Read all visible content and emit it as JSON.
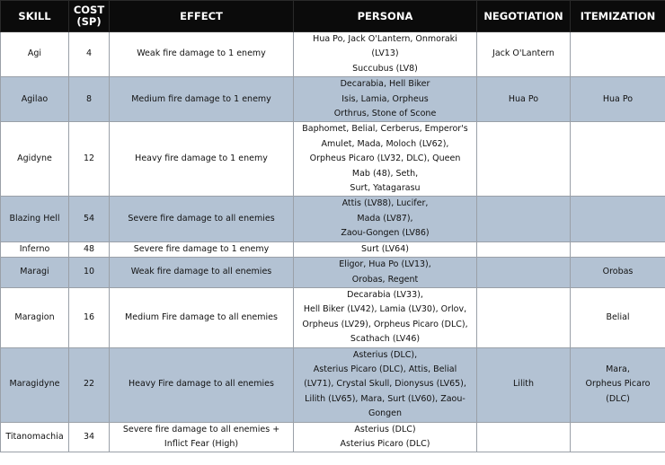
{
  "headers": {
    "skill": "SKILL",
    "cost_line1": "COST",
    "cost_line2": "(SP)",
    "effect": "EFFECT",
    "persona": "PERSONA",
    "negotiation": "NEGOTIATION",
    "itemization": "ITEMIZATION"
  },
  "rows": [
    {
      "skill": "Agi",
      "cost": "4",
      "effect": [
        "Weak fire damage to 1 enemy"
      ],
      "persona": [
        "Hua Po, Jack O'Lantern, Onmoraki",
        "(LV13)",
        "Succubus (LV8)"
      ],
      "negotiation": [
        "Jack O'Lantern"
      ],
      "itemization": [],
      "shade": "white"
    },
    {
      "skill": "Agilao",
      "cost": "8",
      "effect": [
        "Medium fire damage to 1 enemy"
      ],
      "persona": [
        "Decarabia, Hell Biker",
        "Isis, Lamia, Orpheus",
        "Orthrus, Stone of Scone"
      ],
      "negotiation": [
        "Hua Po"
      ],
      "itemization": [
        "Hua Po"
      ],
      "shade": "blue"
    },
    {
      "skill": "Agidyne",
      "cost": "12",
      "effect": [
        "Heavy fire damage to 1 enemy"
      ],
      "persona": [
        "Baphomet, Belial, Cerberus, Emperor's",
        "Amulet, Mada, Moloch (LV62),",
        "Orpheus Picaro (LV32, DLC), Queen",
        "Mab (48), Seth,",
        "Surt, Yatagarasu"
      ],
      "negotiation": [],
      "itemization": [],
      "shade": "white"
    },
    {
      "skill": "Blazing Hell",
      "cost": "54",
      "effect": [
        "Severe fire damage to all enemies"
      ],
      "persona": [
        "Attis (LV88), Lucifer,",
        "Mada (LV87),",
        "Zaou-Gongen (LV86)"
      ],
      "negotiation": [],
      "itemization": [],
      "shade": "blue"
    },
    {
      "skill": "Inferno",
      "cost": "48",
      "effect": [
        "Severe fire damage to 1 enemy"
      ],
      "persona": [
        "Surt (LV64)"
      ],
      "negotiation": [],
      "itemization": [],
      "shade": "white"
    },
    {
      "skill": "Maragi",
      "cost": "10",
      "effect": [
        "Weak fire damage to all enemies"
      ],
      "persona": [
        "Eligor, Hua Po (LV13),",
        "Orobas, Regent"
      ],
      "negotiation": [],
      "itemization": [
        "Orobas"
      ],
      "shade": "blue"
    },
    {
      "skill": "Maragion",
      "cost": "16",
      "effect": [
        "Medium Fire damage to all enemies"
      ],
      "persona": [
        "Decarabia (LV33),",
        "Hell Biker (LV42), Lamia (LV30), Orlov,",
        "Orpheus (LV29), Orpheus Picaro (DLC),",
        "Scathach (LV46)"
      ],
      "negotiation": [],
      "itemization": [
        "Belial"
      ],
      "shade": "white"
    },
    {
      "skill": "Maragidyne",
      "cost": "22",
      "effect": [
        "Heavy Fire damage to all enemies"
      ],
      "persona": [
        "Asterius (DLC),",
        "Asterius Picaro (DLC), Attis, Belial",
        "(LV71), Crystal Skull, Dionysus (LV65),",
        "Lilith (LV65), Mara, Surt (LV60), Zaou-",
        "Gongen"
      ],
      "negotiation": [
        "Lilith"
      ],
      "itemization": [
        "Mara,",
        "Orpheus Picaro",
        "(DLC)"
      ],
      "shade": "blue"
    },
    {
      "skill": "Titanomachia",
      "cost": "34",
      "effect": [
        "Severe fire damage to all enemies +",
        "Inflict Fear (High)"
      ],
      "persona": [
        "Asterius (DLC)",
        "Asterius Picaro (DLC)"
      ],
      "negotiation": [],
      "itemization": [],
      "shade": "white"
    }
  ]
}
